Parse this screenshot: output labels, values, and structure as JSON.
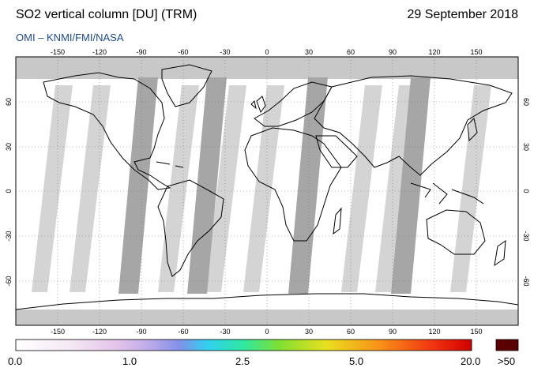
{
  "header": {
    "title": "SO2 vertical column [DU] (TRM)",
    "date": "29 September 2018",
    "subtitle": "OMI  –  KNMI/FMI/NASA"
  },
  "map": {
    "lon_ticks": [
      "-150",
      "-120",
      "-90",
      "-60",
      "-30",
      "0",
      "30",
      "60",
      "90",
      "120",
      "150"
    ],
    "lat_ticks": [
      "60",
      "30",
      "0",
      "-30",
      "-60"
    ],
    "colors": {
      "ocean": "#ffffff",
      "no_data": "#c8c8c8",
      "swath_gap": "#a6a6a6",
      "coast": "#000000",
      "grid": "#7a7a7a"
    }
  },
  "colorbar": {
    "labels": [
      "0.0",
      "1.0",
      "2.5",
      "5.0",
      "20.0",
      ">50"
    ],
    "over_color": "#5a0000"
  }
}
